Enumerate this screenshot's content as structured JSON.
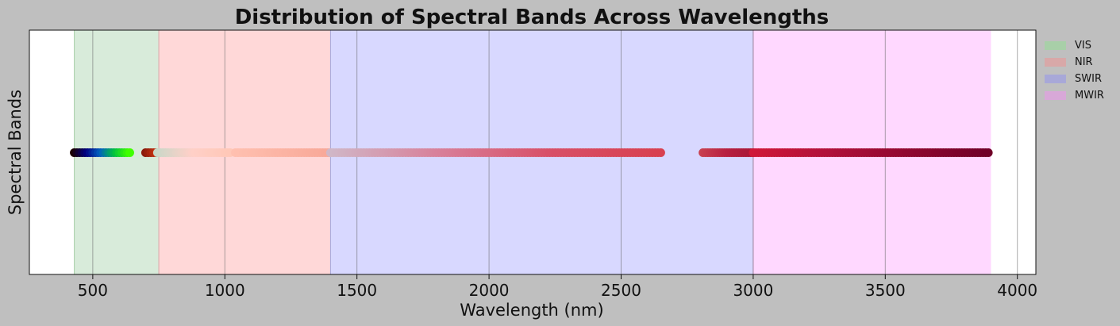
{
  "chart_data": {
    "type": "scatter",
    "title": "Distribution of Spectral Bands Across Wavelengths",
    "xlabel": "Wavelength (nm)",
    "ylabel": "Spectral Bands",
    "xlim": [
      260,
      4070
    ],
    "xticks": [
      500,
      1000,
      1500,
      2000,
      2500,
      3000,
      3500,
      4000
    ],
    "grid": "vertical",
    "legend_placement": "outside-right",
    "bands": [
      {
        "name": "VIS",
        "start": 430,
        "end": 750,
        "color": "#d8ebda",
        "swatch": "#a8cfa8"
      },
      {
        "name": "NIR",
        "start": 750,
        "end": 1400,
        "color": "#ffd8d8",
        "swatch": "#d8a8a8"
      },
      {
        "name": "SWIR",
        "start": 1400,
        "end": 3000,
        "color": "#d8d8ff",
        "swatch": "#a8a8d8"
      },
      {
        "name": "MWIR",
        "start": 3000,
        "end": 3900,
        "color": "#ffd8ff",
        "swatch": "#d8a8d8"
      }
    ],
    "segments": [
      {
        "start": 430,
        "end": 640,
        "count": 22,
        "stops": [
          "#1a0000",
          "#000080",
          "#0060c0",
          "#00c040",
          "#40ff00"
        ]
      },
      {
        "start": 700,
        "end": 740,
        "count": 5,
        "stops": [
          "#8b1a0a",
          "#c03010"
        ]
      },
      {
        "start": 745,
        "end": 1020,
        "count": 28,
        "stops": [
          "#c8d8c8",
          "#ffd0c8",
          "#ffc8b8"
        ]
      },
      {
        "start": 1040,
        "end": 1400,
        "count": 37,
        "stops": [
          "#ffc0b0",
          "#f8a898"
        ]
      },
      {
        "start": 1400,
        "end": 2650,
        "count": 120,
        "stops": [
          "#d0b8c8",
          "#d8809a",
          "#d85068",
          "#d84050"
        ]
      },
      {
        "start": 2810,
        "end": 3000,
        "count": 22,
        "stops": [
          "#c84050",
          "#b82040",
          "#a81838"
        ]
      },
      {
        "start": 3000,
        "end": 3890,
        "count": 90,
        "stops": [
          "#d01838",
          "#b0103a",
          "#900830",
          "#700028"
        ]
      }
    ]
  }
}
